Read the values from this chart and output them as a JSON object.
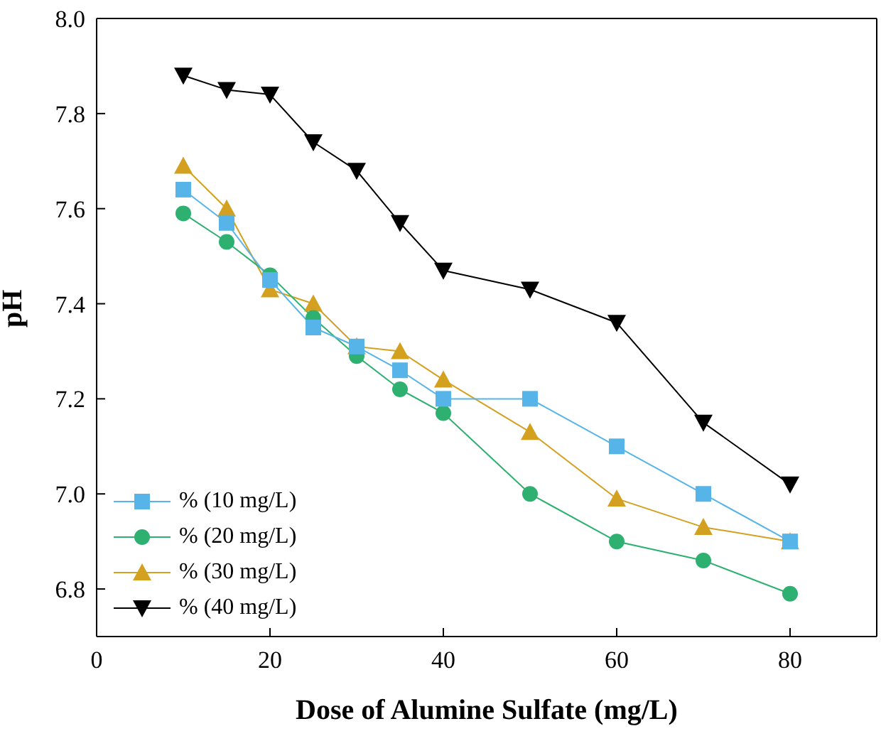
{
  "chart_data": {
    "type": "line",
    "xlabel": "Dose of Alumine Sulfate (mg/L)",
    "ylabel": "pH",
    "x": [
      10,
      15,
      20,
      25,
      30,
      35,
      40,
      50,
      60,
      70,
      80
    ],
    "xlim": [
      0,
      90
    ],
    "xticks": [
      0,
      20,
      40,
      60,
      80
    ],
    "ylim": [
      6.7,
      8.0
    ],
    "yticks": [
      {
        "value": 6.8,
        "label": "6.8"
      },
      {
        "value": 7.0,
        "label": "7.0"
      },
      {
        "value": 7.2,
        "label": "7.2"
      },
      {
        "value": 7.4,
        "label": "7.4"
      },
      {
        "value": 7.6,
        "label": "7.6"
      },
      {
        "value": 7.8,
        "label": "7.8"
      },
      {
        "value": 8.0,
        "label": "8.0"
      }
    ],
    "grid": false,
    "legend": "bottom left",
    "line_style": "solid",
    "series": [
      {
        "name": "% (10 mg/L)",
        "color": "#56b4e9",
        "marker": "square",
        "values": [
          7.64,
          7.57,
          7.45,
          7.35,
          7.31,
          7.26,
          7.2,
          7.2,
          7.1,
          7.0,
          6.9
        ]
      },
      {
        "name": "% (20 mg/L)",
        "color": "#2eb070",
        "marker": "circle",
        "values": [
          7.59,
          7.53,
          7.46,
          7.37,
          7.29,
          7.22,
          7.17,
          7.0,
          6.9,
          6.86,
          6.79
        ]
      },
      {
        "name": "% (30 mg/L)",
        "color": "#d4a020",
        "marker": "triangle",
        "values": [
          7.69,
          7.6,
          7.43,
          7.4,
          7.31,
          7.3,
          7.24,
          7.13,
          6.99,
          6.93,
          6.9
        ]
      },
      {
        "name": "% (40 mg/L)",
        "color": "#000000",
        "marker": "triangle-down",
        "values": [
          7.88,
          7.85,
          7.84,
          7.74,
          7.68,
          7.57,
          7.47,
          7.43,
          7.36,
          7.15,
          7.02
        ]
      }
    ]
  }
}
